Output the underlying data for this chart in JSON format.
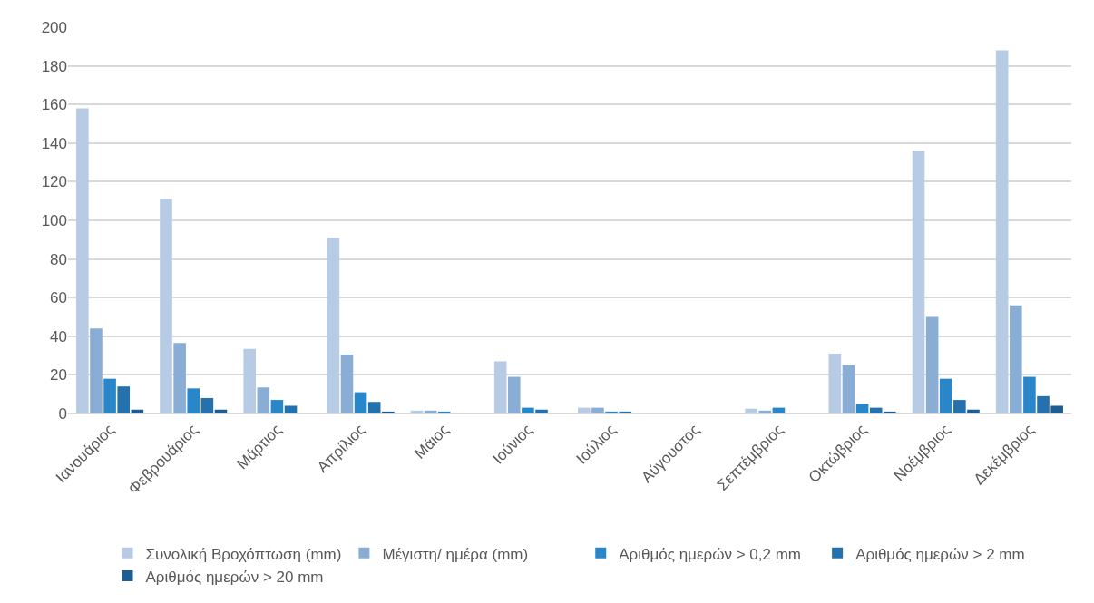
{
  "chart_data": {
    "type": "bar",
    "categories": [
      "Ιανουάριος",
      "Φεβρουάριος",
      "Μάρτιος",
      "Απρίλιος",
      "Μάιος",
      "Ιούνιος",
      "Ιούλιος",
      "Αύγουστος",
      "Σεπτέμβριος",
      "Οκτώβριος",
      "Νοέμβριος",
      "Δεκέμβριος"
    ],
    "series": [
      {
        "name": "Συνολική Βροχόπτωση (mm)",
        "color": "#b7cbe4",
        "values": [
          158,
          111,
          33.5,
          91,
          1.5,
          27,
          3,
          0,
          2.5,
          31,
          136,
          188
        ]
      },
      {
        "name": "Μέγιστη/ ημέρα (mm)",
        "color": "#8aadd6",
        "values": [
          44,
          36.5,
          13.5,
          30.5,
          1.5,
          19,
          3,
          0,
          1.5,
          25,
          50,
          56
        ]
      },
      {
        "name": "Αριθμός ημερών > 0,2 mm",
        "color": "#2986c8",
        "values": [
          18,
          13,
          7,
          11,
          1,
          3,
          1,
          0,
          3,
          5,
          18,
          19
        ]
      },
      {
        "name": "Αριθμός ημερών > 2 mm",
        "color": "#2471ae",
        "values": [
          14,
          8,
          4,
          6,
          0,
          2,
          1,
          0,
          0,
          3,
          7,
          9
        ]
      },
      {
        "name": "Αριθμός ημερών > 20 mm",
        "color": "#1d5d91",
        "values": [
          2,
          2,
          0,
          1,
          0,
          0,
          0,
          0,
          0,
          1,
          2,
          4
        ]
      }
    ],
    "ylim": [
      0,
      200
    ],
    "yticks": [
      0,
      20,
      40,
      60,
      80,
      100,
      120,
      140,
      160,
      180,
      200
    ],
    "grid": "y",
    "legend": "bottom"
  }
}
